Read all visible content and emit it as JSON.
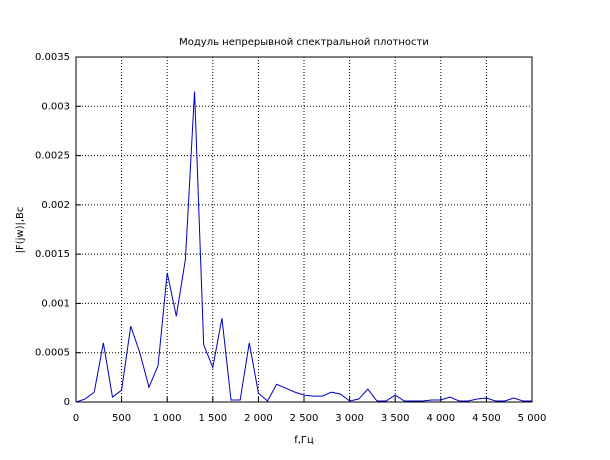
{
  "chart_data": {
    "type": "line",
    "title": "Модуль непрерывной спектральной плотности",
    "x_label": "f,Гц",
    "y_label": "|F(jw)|,Вс",
    "x": [
      0,
      100,
      200,
      300,
      400,
      500,
      600,
      700,
      800,
      900,
      1000,
      1100,
      1200,
      1300,
      1400,
      1500,
      1600,
      1700,
      1800,
      1900,
      2000,
      2100,
      2200,
      2300,
      2400,
      2500,
      2600,
      2700,
      2800,
      2900,
      3000,
      3100,
      3200,
      3300,
      3400,
      3500,
      3600,
      3700,
      3800,
      3900,
      4000,
      4100,
      4200,
      4300,
      4400,
      4500,
      4600,
      4700,
      4800,
      4900,
      5000
    ],
    "values": [
      0,
      3e-05,
      0.0001,
      0.0006,
      5e-05,
      0.00012,
      0.00077,
      0.0005,
      0.00015,
      0.00037,
      0.00131,
      0.00087,
      0.00145,
      0.00315,
      0.00058,
      0.00035,
      0.00085,
      2e-05,
      2e-05,
      0.0006,
      9e-05,
      1e-05,
      0.00018,
      0.00014,
      0.0001,
      7e-05,
      6e-05,
      6e-05,
      0.0001,
      8e-05,
      1e-05,
      3e-05,
      0.00013,
      1e-05,
      1e-05,
      7e-05,
      1e-05,
      1e-05,
      1e-05,
      2e-05,
      2e-05,
      5e-05,
      1e-05,
      1e-05,
      3e-05,
      4e-05,
      1e-05,
      1e-05,
      4e-05,
      1e-05,
      1e-05
    ],
    "color": "#0000c0",
    "xlim": [
      0,
      5000
    ],
    "xticks": [
      0,
      500,
      {
        "value": 1000,
        "label": "1 000"
      },
      {
        "value": 1500,
        "label": "1 500"
      },
      {
        "value": 2000,
        "label": "2 000"
      },
      {
        "value": 2500,
        "label": "2 500"
      },
      {
        "value": 3000,
        "label": "3 000"
      },
      {
        "value": 3500,
        "label": "3 500"
      },
      {
        "value": 4000,
        "label": "4 000"
      },
      {
        "value": 4500,
        "label": "4 500"
      },
      {
        "value": 5000,
        "label": "5 000"
      }
    ],
    "ylim": [
      0,
      0.0035
    ],
    "yticks": [
      0,
      0.0005,
      0.001,
      0.0015,
      0.002,
      0.0025,
      0.003,
      0.0035
    ],
    "grid": true
  }
}
